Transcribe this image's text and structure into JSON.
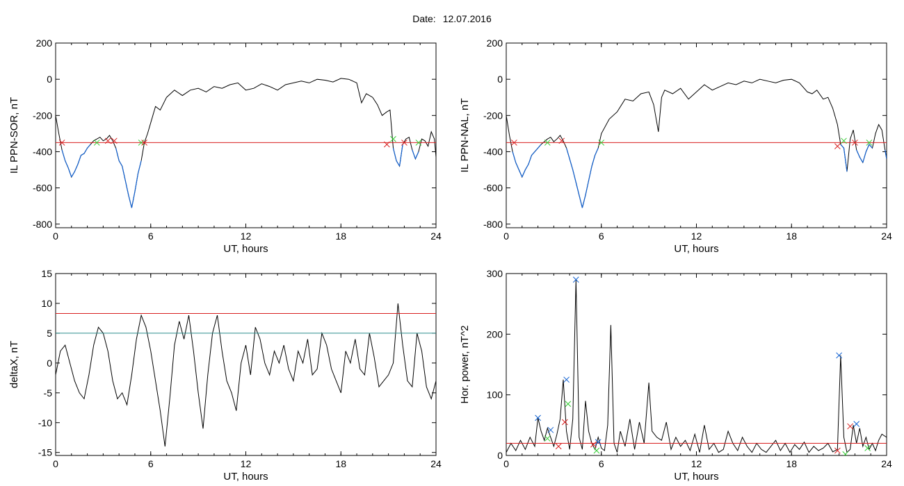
{
  "header": {
    "date_label": "Date:",
    "date_value": "12.07.2016"
  },
  "colors": {
    "line": "#000000",
    "active": "#1060d0",
    "threshold_red": "#d81e1e",
    "threshold_teal": "#2a8c8c",
    "marker_red": "#d81e1e",
    "marker_green": "#33cc33",
    "marker_blue": "#1060d0"
  },
  "chart_data": [
    {
      "type": "line",
      "id": "ppn-sor",
      "xlabel": "UT, hours",
      "ylabel": "IL PPN-SOR, nT",
      "xlim": [
        0,
        24
      ],
      "ylim": [
        -820,
        200
      ],
      "xticks": [
        "0",
        "6",
        "12",
        "18",
        "24"
      ],
      "yticks": [
        "200",
        "0",
        "-200",
        "-400",
        "-600",
        "-800"
      ],
      "threshold_red": -350,
      "series": [
        {
          "x": [
            0,
            0.2,
            0.4,
            0.6,
            0.8,
            1.0,
            1.2,
            1.4,
            1.6,
            1.8,
            2.0,
            2.2,
            2.4,
            2.6,
            2.8,
            3.0,
            3.2,
            3.4,
            3.6,
            3.8,
            4.0,
            4.2,
            4.4,
            4.6,
            4.8,
            5.0,
            5.2,
            5.4,
            5.6,
            5.8,
            6.0,
            6.3,
            6.6,
            7.0,
            7.5,
            8.0,
            8.5,
            9.0,
            9.5,
            10.0,
            10.5,
            11.0,
            11.5,
            12.0,
            12.5,
            13.0,
            13.5,
            14.0,
            14.5,
            15.0,
            15.5,
            16.0,
            16.5,
            17.0,
            17.5,
            18.0,
            18.5,
            19.0,
            19.3,
            19.6,
            19.8,
            20.0,
            20.3,
            20.6,
            20.9,
            21.1,
            21.3,
            21.5,
            21.7,
            21.9,
            22.1,
            22.3,
            22.5,
            22.7,
            22.9,
            23.1,
            23.3,
            23.5,
            23.7,
            23.9,
            24.0
          ],
          "y": [
            -200,
            -300,
            -390,
            -450,
            -490,
            -540,
            -510,
            -470,
            -420,
            -410,
            -380,
            -360,
            -340,
            -330,
            -320,
            -340,
            -330,
            -310,
            -340,
            -380,
            -450,
            -480,
            -560,
            -640,
            -710,
            -620,
            -520,
            -450,
            -350,
            -300,
            -240,
            -150,
            -170,
            -100,
            -60,
            -90,
            -60,
            -50,
            -70,
            -40,
            -50,
            -30,
            -20,
            -60,
            -50,
            -25,
            -40,
            -60,
            -30,
            -20,
            -10,
            -20,
            0,
            -5,
            -15,
            5,
            0,
            -20,
            -130,
            -80,
            -90,
            -100,
            -140,
            -200,
            -180,
            -170,
            -380,
            -450,
            -480,
            -360,
            -330,
            -320,
            -390,
            -440,
            -400,
            -330,
            -340,
            -370,
            -290,
            -330,
            -430
          ],
          "segments_below_threshold": "blue"
        }
      ],
      "markers": [
        {
          "x": 0.4,
          "y": -350,
          "color": "red"
        },
        {
          "x": 2.6,
          "y": -350,
          "color": "green"
        },
        {
          "x": 3.3,
          "y": -340,
          "color": "red"
        },
        {
          "x": 3.7,
          "y": -340,
          "color": "red"
        },
        {
          "x": 5.4,
          "y": -350,
          "color": "green"
        },
        {
          "x": 5.6,
          "y": -350,
          "color": "red"
        },
        {
          "x": 20.9,
          "y": -360,
          "color": "red"
        },
        {
          "x": 21.3,
          "y": -330,
          "color": "green"
        },
        {
          "x": 22.0,
          "y": -350,
          "color": "red"
        },
        {
          "x": 22.9,
          "y": -350,
          "color": "green"
        }
      ]
    },
    {
      "type": "line",
      "id": "ppn-nal",
      "xlabel": "UT, hours",
      "ylabel": "IL PPN-NAL, nT",
      "xlim": [
        0,
        24
      ],
      "ylim": [
        -820,
        200
      ],
      "xticks": [
        "0",
        "6",
        "12",
        "18",
        "24"
      ],
      "yticks": [
        "200",
        "0",
        "-200",
        "-400",
        "-600",
        "-800"
      ],
      "threshold_red": -350,
      "series": [
        {
          "x": [
            0,
            0.2,
            0.4,
            0.6,
            0.8,
            1.0,
            1.2,
            1.4,
            1.6,
            1.8,
            2.0,
            2.2,
            2.4,
            2.6,
            2.8,
            3.0,
            3.2,
            3.4,
            3.6,
            3.8,
            4.0,
            4.2,
            4.4,
            4.6,
            4.8,
            5.0,
            5.2,
            5.4,
            5.6,
            5.8,
            6.0,
            6.5,
            7.0,
            7.5,
            8.0,
            8.5,
            9.0,
            9.3,
            9.6,
            9.8,
            10.0,
            10.5,
            11.0,
            11.5,
            12.0,
            12.5,
            13.0,
            13.5,
            14.0,
            14.5,
            15.0,
            15.5,
            16.0,
            16.5,
            17.0,
            17.5,
            18.0,
            18.5,
            19.0,
            19.3,
            19.6,
            20.0,
            20.3,
            20.6,
            20.9,
            21.1,
            21.3,
            21.5,
            21.7,
            21.9,
            22.1,
            22.3,
            22.5,
            22.7,
            22.9,
            23.1,
            23.3,
            23.5,
            23.7,
            23.9,
            24.0
          ],
          "y": [
            -200,
            -310,
            -400,
            -460,
            -500,
            -540,
            -500,
            -470,
            -420,
            -400,
            -380,
            -360,
            -345,
            -330,
            -320,
            -345,
            -330,
            -310,
            -340,
            -380,
            -440,
            -500,
            -570,
            -640,
            -710,
            -640,
            -560,
            -480,
            -420,
            -380,
            -300,
            -220,
            -180,
            -110,
            -120,
            -80,
            -70,
            -140,
            -290,
            -100,
            -60,
            -80,
            -50,
            -110,
            -70,
            -30,
            -60,
            -40,
            -20,
            -30,
            -10,
            -20,
            0,
            -10,
            -20,
            -5,
            0,
            -20,
            -70,
            -80,
            -60,
            -110,
            -100,
            -160,
            -250,
            -360,
            -380,
            -510,
            -330,
            -280,
            -390,
            -430,
            -460,
            -400,
            -360,
            -380,
            -300,
            -250,
            -280,
            -390,
            -440
          ],
          "segments_below_threshold": "blue"
        }
      ],
      "markers": [
        {
          "x": 0.5,
          "y": -350,
          "color": "red"
        },
        {
          "x": 2.6,
          "y": -350,
          "color": "green"
        },
        {
          "x": 3.5,
          "y": -340,
          "color": "red"
        },
        {
          "x": 6.0,
          "y": -350,
          "color": "green"
        },
        {
          "x": 20.9,
          "y": -370,
          "color": "red"
        },
        {
          "x": 21.3,
          "y": -340,
          "color": "green"
        },
        {
          "x": 22.0,
          "y": -350,
          "color": "red"
        },
        {
          "x": 22.9,
          "y": -350,
          "color": "green"
        }
      ]
    },
    {
      "type": "line",
      "id": "deltax",
      "xlabel": "UT, hours",
      "ylabel": "deltaX, nT",
      "xlim": [
        0,
        24
      ],
      "ylim": [
        -15.5,
        15
      ],
      "xticks": [
        "0",
        "6",
        "12",
        "18",
        "24"
      ],
      "yticks": [
        "15",
        "10",
        "5",
        "0",
        "-5",
        "-10",
        "-15"
      ],
      "threshold_red": 8.3,
      "threshold_teal": 5.0,
      "series": [
        {
          "x": [
            0,
            0.3,
            0.6,
            0.9,
            1.2,
            1.5,
            1.8,
            2.1,
            2.4,
            2.7,
            3.0,
            3.3,
            3.6,
            3.9,
            4.2,
            4.5,
            4.8,
            5.1,
            5.4,
            5.7,
            6.0,
            6.3,
            6.6,
            6.9,
            7.2,
            7.5,
            7.8,
            8.1,
            8.4,
            8.7,
            9.0,
            9.3,
            9.6,
            9.9,
            10.2,
            10.5,
            10.8,
            11.1,
            11.4,
            11.7,
            12.0,
            12.3,
            12.6,
            12.9,
            13.2,
            13.5,
            13.8,
            14.1,
            14.4,
            14.7,
            15.0,
            15.3,
            15.6,
            15.9,
            16.2,
            16.5,
            16.8,
            17.1,
            17.4,
            17.7,
            18.0,
            18.3,
            18.6,
            18.9,
            19.2,
            19.5,
            19.8,
            20.1,
            20.4,
            20.7,
            21.0,
            21.3,
            21.6,
            21.9,
            22.2,
            22.5,
            22.8,
            23.1,
            23.4,
            23.7,
            24.0
          ],
          "y": [
            -2,
            2,
            3,
            0,
            -3,
            -5,
            -6,
            -2,
            3,
            6,
            5,
            2,
            -3,
            -6,
            -5,
            -7,
            -2,
            4,
            8,
            6,
            2,
            -3,
            -8,
            -14,
            -6,
            3,
            7,
            4,
            8,
            2,
            -5,
            -11,
            -2,
            5,
            8,
            2,
            -3,
            -5,
            -8,
            0,
            3,
            -2,
            6,
            4,
            0,
            -2,
            2,
            0,
            3,
            -1,
            -3,
            2,
            0,
            4,
            -2,
            -1,
            5,
            3,
            -1,
            -3,
            -5,
            2,
            0,
            4,
            -1,
            -2,
            5,
            1,
            -4,
            -3,
            -2,
            0,
            10,
            3,
            -3,
            -4,
            5,
            2,
            -4,
            -6,
            -3
          ],
          "color": "black"
        }
      ]
    },
    {
      "type": "line",
      "id": "hor-power",
      "xlabel": "UT, hours",
      "ylabel": "Hor. power, nT^2",
      "xlim": [
        0,
        24
      ],
      "ylim": [
        0,
        300
      ],
      "xticks": [
        "0",
        "6",
        "12",
        "18",
        "24"
      ],
      "yticks": [
        "300",
        "200",
        "100",
        "0"
      ],
      "threshold_red": 20,
      "series": [
        {
          "x": [
            0,
            0.3,
            0.6,
            0.9,
            1.2,
            1.5,
            1.8,
            2.0,
            2.2,
            2.4,
            2.6,
            2.8,
            3.0,
            3.2,
            3.4,
            3.6,
            3.8,
            4.0,
            4.2,
            4.4,
            4.6,
            4.8,
            5.0,
            5.2,
            5.4,
            5.6,
            5.8,
            6.0,
            6.2,
            6.4,
            6.6,
            6.8,
            7.0,
            7.2,
            7.5,
            7.8,
            8.1,
            8.4,
            8.7,
            9.0,
            9.2,
            9.5,
            9.8,
            10.1,
            10.4,
            10.7,
            11.0,
            11.3,
            11.6,
            11.9,
            12.2,
            12.5,
            12.8,
            13.1,
            13.4,
            13.7,
            14.0,
            14.3,
            14.6,
            14.9,
            15.2,
            15.5,
            15.8,
            16.1,
            16.4,
            16.7,
            17.0,
            17.3,
            17.6,
            17.9,
            18.2,
            18.5,
            18.8,
            19.1,
            19.4,
            19.7,
            20.0,
            20.3,
            20.6,
            20.9,
            21.1,
            21.3,
            21.5,
            21.7,
            21.9,
            22.1,
            22.3,
            22.5,
            22.7,
            22.9,
            23.1,
            23.3,
            23.5,
            23.7,
            24.0
          ],
          "y": [
            5,
            20,
            8,
            25,
            10,
            30,
            15,
            62,
            40,
            25,
            45,
            30,
            15,
            35,
            60,
            125,
            40,
            10,
            60,
            290,
            30,
            10,
            90,
            40,
            20,
            10,
            30,
            12,
            8,
            50,
            215,
            20,
            5,
            40,
            15,
            60,
            10,
            55,
            20,
            120,
            40,
            30,
            25,
            55,
            10,
            30,
            15,
            25,
            8,
            35,
            5,
            50,
            10,
            20,
            5,
            10,
            40,
            20,
            8,
            30,
            15,
            5,
            20,
            10,
            5,
            15,
            25,
            8,
            20,
            5,
            18,
            10,
            22,
            5,
            15,
            8,
            12,
            20,
            6,
            10,
            165,
            30,
            5,
            10,
            50,
            20,
            45,
            15,
            30,
            10,
            20,
            8,
            25,
            35,
            30
          ],
          "color": "black"
        }
      ],
      "markers": [
        {
          "x": 2.0,
          "y": 62,
          "color": "blue"
        },
        {
          "x": 2.8,
          "y": 42,
          "color": "blue"
        },
        {
          "x": 2.6,
          "y": 28,
          "color": "green"
        },
        {
          "x": 3.3,
          "y": 15,
          "color": "red"
        },
        {
          "x": 3.7,
          "y": 55,
          "color": "red"
        },
        {
          "x": 3.8,
          "y": 125,
          "color": "blue"
        },
        {
          "x": 3.9,
          "y": 85,
          "color": "green"
        },
        {
          "x": 4.4,
          "y": 290,
          "color": "blue"
        },
        {
          "x": 5.5,
          "y": 18,
          "color": "red"
        },
        {
          "x": 5.8,
          "y": 22,
          "color": "blue"
        },
        {
          "x": 5.7,
          "y": 8,
          "color": "green"
        },
        {
          "x": 20.9,
          "y": 8,
          "color": "red"
        },
        {
          "x": 21.0,
          "y": 165,
          "color": "blue"
        },
        {
          "x": 21.4,
          "y": 2,
          "color": "green"
        },
        {
          "x": 21.7,
          "y": 48,
          "color": "red"
        },
        {
          "x": 22.1,
          "y": 52,
          "color": "blue"
        },
        {
          "x": 22.8,
          "y": 12,
          "color": "green"
        }
      ]
    }
  ]
}
